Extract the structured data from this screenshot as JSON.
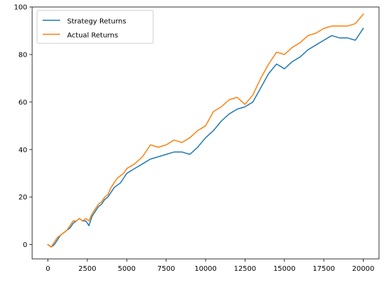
{
  "chart_data": {
    "type": "line",
    "title": "",
    "xlabel": "",
    "ylabel": "",
    "xlim": [
      -1000,
      21000
    ],
    "ylim": [
      -6,
      100
    ],
    "xticks": [
      0,
      2500,
      5000,
      7500,
      10000,
      12500,
      15000,
      17500,
      20000
    ],
    "yticks": [
      0,
      20,
      40,
      60,
      80,
      100
    ],
    "grid": false,
    "legend_position": "upper-left",
    "series": [
      {
        "name": "Strategy Returns",
        "color": "#1f77b4",
        "x": [
          0,
          200,
          400,
          600,
          800,
          1000,
          1200,
          1400,
          1600,
          1800,
          2000,
          2200,
          2400,
          2600,
          2800,
          3000,
          3200,
          3400,
          3600,
          3800,
          4000,
          4200,
          4400,
          4600,
          4800,
          5000,
          5500,
          6000,
          6500,
          7000,
          7500,
          8000,
          8500,
          9000,
          9500,
          10000,
          10500,
          11000,
          11500,
          12000,
          12500,
          13000,
          13500,
          14000,
          14500,
          15000,
          15500,
          16000,
          16500,
          17000,
          17500,
          18000,
          18500,
          19000,
          19500,
          20000
        ],
        "y": [
          0,
          -1,
          0,
          2,
          4,
          5,
          6,
          7,
          9,
          10,
          11,
          10,
          10,
          8,
          12,
          14,
          16,
          17,
          19,
          20,
          22,
          24,
          25,
          26,
          28,
          30,
          32,
          34,
          36,
          37,
          38,
          39,
          39,
          38,
          41,
          45,
          48,
          52,
          55,
          57,
          58,
          60,
          66,
          72,
          76,
          74,
          77,
          79,
          82,
          84,
          86,
          88,
          87,
          87,
          86,
          91
        ]
      },
      {
        "name": "Actual Returns",
        "color": "#ff7f0e",
        "x": [
          0,
          200,
          400,
          600,
          800,
          1000,
          1200,
          1400,
          1600,
          1800,
          2000,
          2200,
          2400,
          2600,
          2800,
          3000,
          3200,
          3400,
          3600,
          3800,
          4000,
          4200,
          4400,
          4600,
          4800,
          5000,
          5500,
          6000,
          6500,
          7000,
          7500,
          8000,
          8500,
          9000,
          9500,
          10000,
          10500,
          11000,
          11500,
          12000,
          12500,
          13000,
          13500,
          14000,
          14500,
          15000,
          15500,
          16000,
          16500,
          17000,
          17500,
          18000,
          18500,
          19000,
          19500,
          20000
        ],
        "y": [
          0,
          -1,
          1,
          3,
          4,
          5,
          6,
          8,
          10,
          10,
          11,
          10,
          11,
          10,
          13,
          15,
          17,
          18,
          20,
          21,
          24,
          26,
          28,
          29,
          30,
          32,
          34,
          37,
          42,
          41,
          42,
          44,
          43,
          45,
          48,
          50,
          56,
          58,
          61,
          62,
          59,
          63,
          70,
          76,
          81,
          80,
          83,
          85,
          88,
          89,
          91,
          92,
          92,
          92,
          93,
          97
        ]
      }
    ]
  }
}
